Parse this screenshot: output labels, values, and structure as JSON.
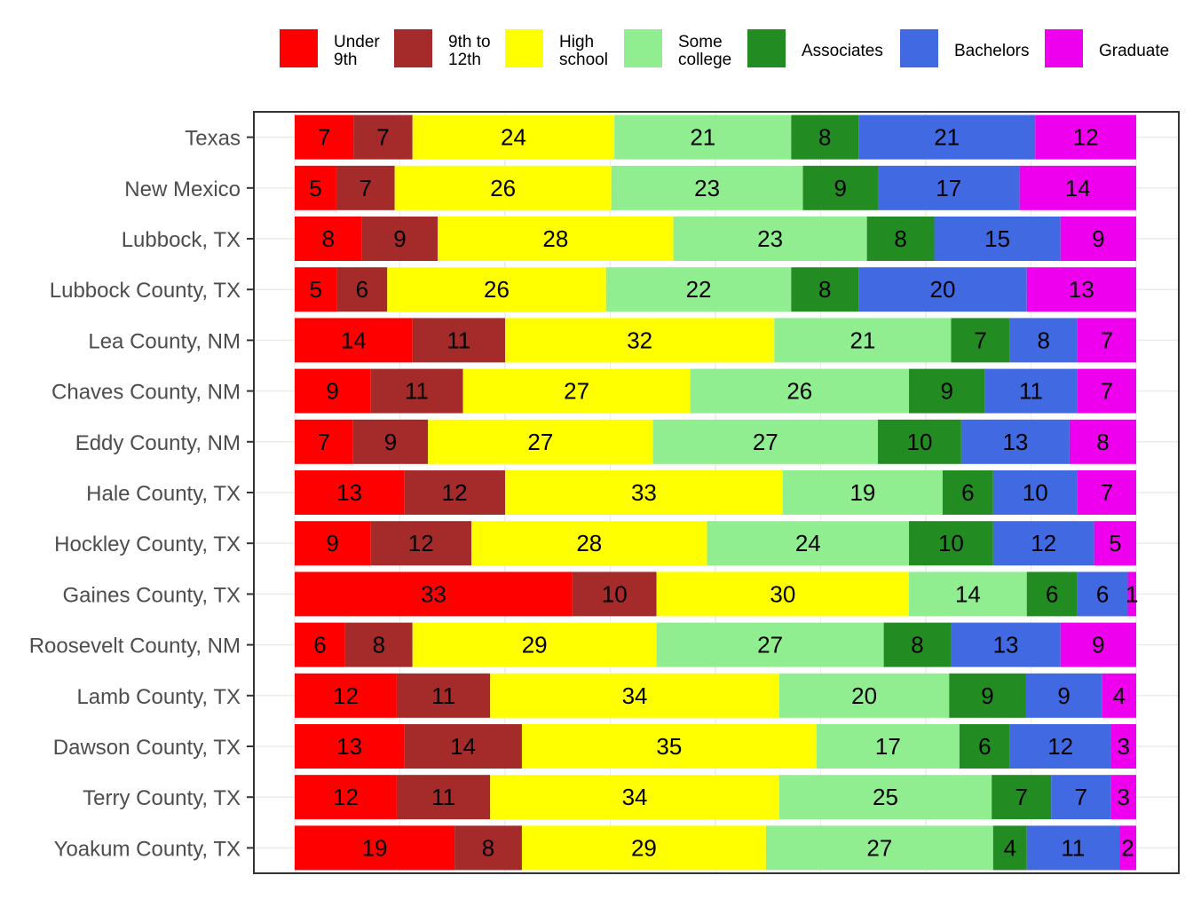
{
  "chart_data": {
    "type": "bar",
    "orientation": "horizontal",
    "stacked": true,
    "normalized": true,
    "title": "",
    "xlabel": "",
    "ylabel": "",
    "xlim": [
      0,
      100
    ],
    "grid": true,
    "legend_position": "top",
    "categories": [
      "Texas",
      "New Mexico",
      "Lubbock, TX",
      "Lubbock County, TX",
      "Lea County, NM",
      "Chaves County, NM",
      "Eddy County, NM",
      "Hale County, TX",
      "Hockley County, TX",
      "Gaines County, TX",
      "Roosevelt County, NM",
      "Lamb County, TX",
      "Dawson County, TX",
      "Terry County, TX",
      "Yoakum County, TX"
    ],
    "series": [
      {
        "name": "Under 9th",
        "legend_lines": [
          "Under",
          "9th"
        ],
        "color": "#FF0000",
        "values": [
          7,
          5,
          8,
          5,
          14,
          9,
          7,
          13,
          9,
          33,
          6,
          12,
          13,
          12,
          19
        ]
      },
      {
        "name": "9th to 12th",
        "legend_lines": [
          "9th to",
          "12th"
        ],
        "color": "#A52A2A",
        "values": [
          7,
          7,
          9,
          6,
          11,
          11,
          9,
          12,
          12,
          10,
          8,
          11,
          14,
          11,
          8
        ]
      },
      {
        "name": "High school",
        "legend_lines": [
          "High",
          "school"
        ],
        "color": "#FFFF00",
        "values": [
          24,
          26,
          28,
          26,
          32,
          27,
          27,
          33,
          28,
          30,
          29,
          34,
          35,
          34,
          29
        ]
      },
      {
        "name": "Some college",
        "legend_lines": [
          "Some",
          "college"
        ],
        "color": "#90EE90",
        "values": [
          21,
          23,
          23,
          22,
          21,
          26,
          27,
          19,
          24,
          14,
          27,
          20,
          17,
          25,
          27
        ]
      },
      {
        "name": "Associates",
        "legend_lines": [
          "Associates"
        ],
        "color": "#228B22",
        "values": [
          8,
          9,
          8,
          8,
          7,
          9,
          10,
          6,
          10,
          6,
          8,
          9,
          6,
          7,
          4
        ]
      },
      {
        "name": "Bachelors",
        "legend_lines": [
          "Bachelors"
        ],
        "color": "#4169E1",
        "values": [
          21,
          17,
          15,
          20,
          8,
          11,
          13,
          10,
          12,
          6,
          13,
          9,
          12,
          7,
          11
        ]
      },
      {
        "name": "Graduate",
        "legend_lines": [
          "Graduate"
        ],
        "color": "#EE00EE",
        "values": [
          12,
          14,
          9,
          13,
          7,
          7,
          8,
          7,
          5,
          1,
          9,
          4,
          3,
          3,
          2
        ]
      }
    ]
  }
}
